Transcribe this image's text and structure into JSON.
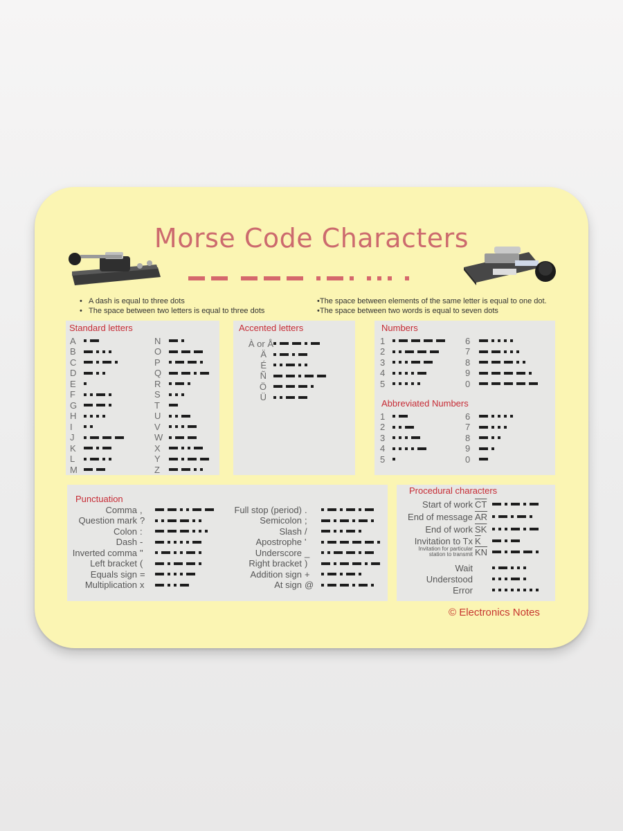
{
  "title": "Morse Code Characters",
  "title_morse": "-- --- .-. ... .",
  "notes": {
    "left": [
      "A dash is equal to three dots",
      "The space between two letters is equal to three dots"
    ],
    "right": [
      "•The space between elements of the same letter is equal to one dot.",
      "•The space between two words is equal to seven dots"
    ]
  },
  "standard": {
    "title": "Standard letters",
    "left": [
      [
        "A",
        ".-"
      ],
      [
        "B",
        "-..."
      ],
      [
        "C",
        "-.-."
      ],
      [
        "D",
        "-.."
      ],
      [
        "E",
        "."
      ],
      [
        "F",
        "..-."
      ],
      [
        "G",
        "--."
      ],
      [
        "H",
        "...."
      ],
      [
        "I",
        ".."
      ],
      [
        "J",
        ".---"
      ],
      [
        "K",
        "-.-"
      ],
      [
        "L",
        ".-.."
      ],
      [
        "M",
        "--"
      ]
    ],
    "right": [
      [
        "N",
        "-."
      ],
      [
        "O",
        "---"
      ],
      [
        "P",
        ".--."
      ],
      [
        "Q",
        "--.-"
      ],
      [
        "R",
        ".-."
      ],
      [
        "S",
        "..."
      ],
      [
        "T",
        "-"
      ],
      [
        "U",
        "..-"
      ],
      [
        "V",
        "...-"
      ],
      [
        "W",
        ".--"
      ],
      [
        "X",
        "-..-"
      ],
      [
        "Y",
        "-.--"
      ],
      [
        "Z",
        "--.."
      ]
    ]
  },
  "accented": {
    "title": "Accented letters",
    "items": [
      [
        "À or Å",
        ".--.-"
      ],
      [
        "Ä",
        ".-.-"
      ],
      [
        "É",
        "..-.."
      ],
      [
        "Ñ",
        "--.--"
      ],
      [
        "Ö",
        "---."
      ],
      [
        "Ü",
        "..--"
      ]
    ]
  },
  "numbers": {
    "title": "Numbers",
    "left": [
      [
        "1",
        ".----"
      ],
      [
        "2",
        "..---"
      ],
      [
        "3",
        "...--"
      ],
      [
        "4",
        "....-"
      ],
      [
        "5",
        "....."
      ]
    ],
    "right": [
      [
        "6",
        "-...."
      ],
      [
        "7",
        "--..."
      ],
      [
        "8",
        "---.."
      ],
      [
        "9",
        "----."
      ],
      [
        "0",
        "-----"
      ]
    ]
  },
  "abbreviated": {
    "title": "Abbreviated Numbers",
    "left": [
      [
        "1",
        ".-"
      ],
      [
        "2",
        "..-"
      ],
      [
        "3",
        "...-"
      ],
      [
        "4",
        "....-"
      ],
      [
        "5",
        "."
      ]
    ],
    "right": [
      [
        "6",
        "-...."
      ],
      [
        "7",
        "-..."
      ],
      [
        "8",
        "-.."
      ],
      [
        "9",
        "-."
      ],
      [
        "0",
        "-"
      ]
    ]
  },
  "punctuation": {
    "title": "Punctuation",
    "left": [
      [
        "Comma",
        ",",
        "--..--"
      ],
      [
        "Question mark",
        "?",
        "..--.."
      ],
      [
        "Colon",
        ":",
        "---..."
      ],
      [
        "Dash",
        "-",
        "-....-"
      ],
      [
        "Inverted comma",
        "\"",
        ".-..-."
      ],
      [
        "Left bracket",
        "(",
        "-.--."
      ],
      [
        "Equals sign",
        "=",
        "-...-"
      ],
      [
        "Multiplication",
        "x",
        "-..-"
      ]
    ],
    "right": [
      [
        "Full stop (period)",
        ".",
        ".-.-.-"
      ],
      [
        "Semicolon",
        ";",
        "-.-.-."
      ],
      [
        "Slash",
        "/",
        "-..-."
      ],
      [
        "Apostrophe",
        "'",
        ".----."
      ],
      [
        "Underscore",
        "_",
        "..--.-"
      ],
      [
        "Right bracket",
        ")",
        "-.--.-"
      ],
      [
        "Addition sign",
        "+",
        ".-.-."
      ],
      [
        "At sign",
        "@",
        ".--.-."
      ]
    ]
  },
  "procedural": {
    "title": "Procedural characters",
    "items": [
      {
        "label": "Start of work",
        "sym": "CT",
        "code": "-.-.-"
      },
      {
        "label": "End of message",
        "sym": "AR",
        "code": ".-.-."
      },
      {
        "label": "End of work",
        "sym": "SK",
        "code": "...-.-"
      },
      {
        "label": "Invitation to Tx",
        "sym": "K",
        "code": "-.-"
      },
      {
        "label_small": [
          "Invitation for particular",
          "station to transmit"
        ],
        "sym": "KN",
        "code": "-.--."
      },
      {
        "label": "Wait",
        "sym": "",
        "code": ".-..."
      },
      {
        "label": "Understood",
        "sym": "",
        "code": "...-."
      },
      {
        "label": "Error",
        "sym": "",
        "code": "........"
      }
    ]
  },
  "copyright": "© Electronics Notes",
  "colors": {
    "title": "#cc6a6e",
    "section_title": "#c62b35",
    "pad": "#fbf5b3",
    "panel": "#e7e7e5",
    "morse": "#1c1c1c"
  }
}
